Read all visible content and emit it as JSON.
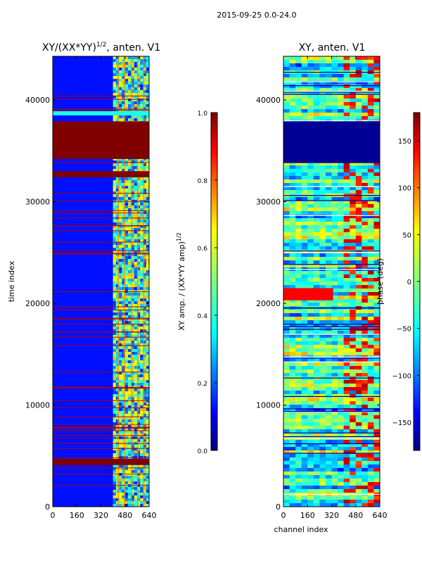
{
  "figure": {
    "suptitle": "2015-09-25 0.0-24.0"
  },
  "chart_data": [
    {
      "type": "heatmap",
      "title": "XY/(XX*YY)",
      "title_exp": "1/2",
      "title_suffix": ", anten. V1",
      "xlabel": "",
      "ylabel": "time index",
      "xlim": [
        0,
        640
      ],
      "ylim": [
        0,
        44300
      ],
      "xticks": [
        0,
        160,
        320,
        480,
        640
      ],
      "yticks": [
        0,
        10000,
        20000,
        30000,
        40000
      ],
      "flagged_blocks": [
        [
          34200,
          37900
        ],
        [
          32400,
          33000
        ],
        [
          4100,
          4700
        ]
      ],
      "bright_channel_range": [
        400,
        640
      ],
      "colorbar": {
        "label": "XY amp. / (XX*YY amp)",
        "label_exp": "1/2",
        "range": [
          0.0,
          1.0
        ],
        "ticks": [
          0.0,
          0.2,
          0.4,
          0.6,
          0.8,
          1.0
        ],
        "ticklabels": [
          "0.0",
          "0.2",
          "0.4",
          "0.6",
          "0.8",
          "1.0"
        ]
      }
    },
    {
      "type": "heatmap",
      "title": "XY, anten. V1",
      "xlabel": "channel index",
      "ylabel": "",
      "xlim": [
        0,
        640
      ],
      "ylim": [
        0,
        44300
      ],
      "xticks": [
        0,
        160,
        320,
        480,
        640
      ],
      "yticks": [
        0,
        10000,
        20000,
        30000,
        40000
      ],
      "flagged_blocks": [
        [
          33800,
          37900
        ]
      ],
      "colorbar": {
        "label": "phase (deg)",
        "range": [
          -180,
          180
        ],
        "ticks": [
          -150,
          -100,
          -50,
          0,
          50,
          100,
          150
        ],
        "ticklabels": [
          "−150",
          "−100",
          "−50",
          "0",
          "50",
          "100",
          "150"
        ]
      }
    }
  ]
}
